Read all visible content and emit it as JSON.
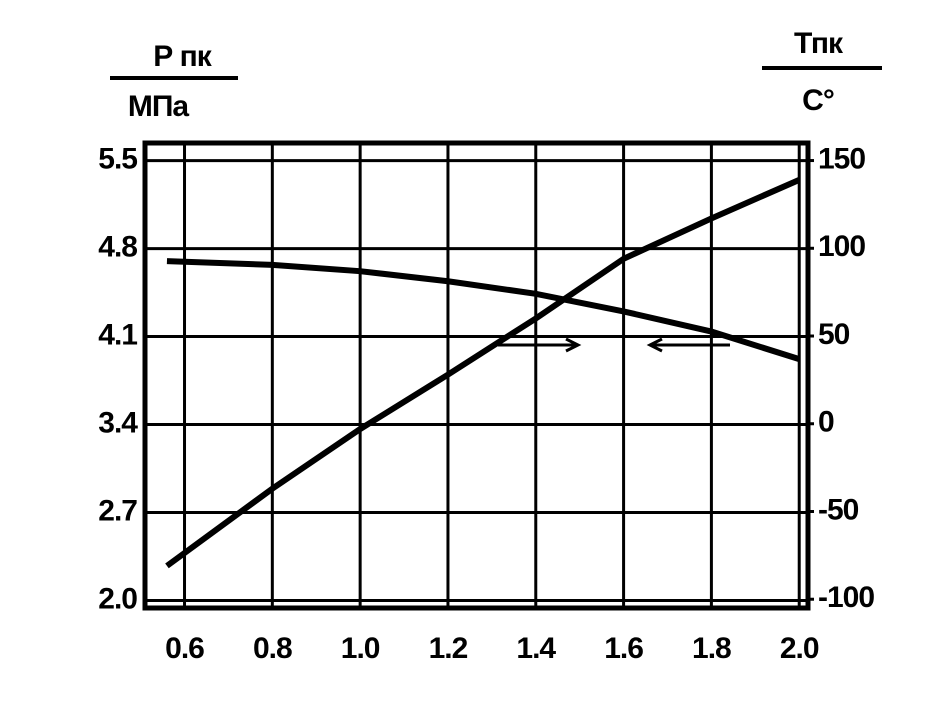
{
  "chart_data": {
    "type": "line",
    "ylabel": {
      "top": "Р пк",
      "bottom": "МПа"
    },
    "y2label": {
      "top": "Тпк",
      "bottom": "С°"
    },
    "x": [
      0.56,
      0.8,
      1.0,
      1.2,
      1.4,
      1.6,
      1.8,
      2.0
    ],
    "series": [
      {
        "color": "#000000",
        "values": [
          4.7,
          4.67,
          4.62,
          4.54,
          4.44,
          4.3,
          4.14,
          3.92
        ]
      },
      {
        "color": "#000000",
        "axis": "y2",
        "values": [
          -81,
          -37,
          -3,
          28,
          60,
          94,
          117,
          139
        ]
      }
    ],
    "xlim": [
      0.51,
      2.02
    ],
    "xticks": [
      0.6,
      0.8,
      {
        "value": 1.0,
        "label": "1.0"
      },
      1.2,
      1.4,
      1.6,
      1.8,
      {
        "value": 2.0,
        "label": "2.0"
      }
    ],
    "ylim": [
      1.94,
      5.64
    ],
    "yticks": [
      {
        "value": 2.0,
        "label": "2.0"
      },
      2.7,
      3.4,
      4.1,
      4.8,
      5.5
    ],
    "y2lim": [
      -105,
      160
    ],
    "y2ticks": [
      -100,
      -50,
      0,
      50,
      100,
      150
    ],
    "grid": true
  }
}
